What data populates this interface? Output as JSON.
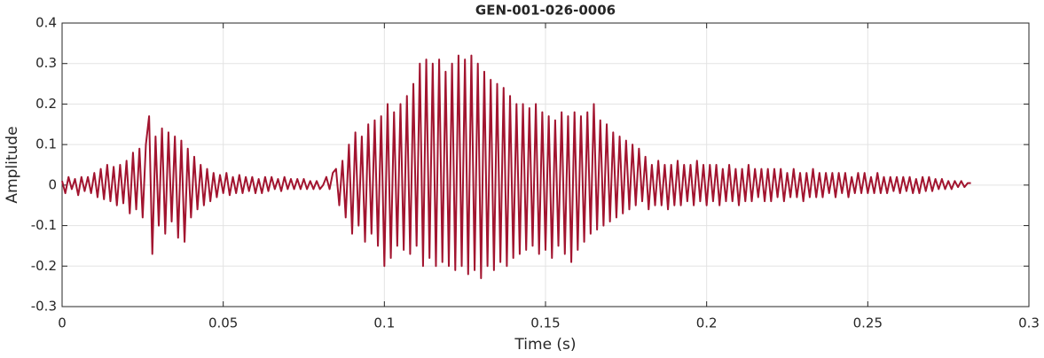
{
  "chart_data": {
    "type": "line",
    "title": "GEN-001-026-0006",
    "xlabel": "Time (s)",
    "ylabel": "Amplitude",
    "color": "#a2142f",
    "grid": true,
    "xlim": [
      0,
      0.3
    ],
    "xticks": [
      0,
      0.05,
      0.1,
      0.15,
      0.2,
      0.25,
      0.3
    ],
    "ylim": [
      -0.3,
      0.4
    ],
    "yticks": [
      -0.3,
      -0.2,
      -0.1,
      0,
      0.1,
      0.2,
      0.3,
      0.4
    ],
    "x": [
      0,
      0.001,
      0.002,
      0.003,
      0.004,
      0.005,
      0.006,
      0.007,
      0.008,
      0.009,
      0.01,
      0.011,
      0.012,
      0.013,
      0.014,
      0.015,
      0.016,
      0.017,
      0.018,
      0.019,
      0.02,
      0.021,
      0.022,
      0.023,
      0.024,
      0.025,
      0.026,
      0.027,
      0.028,
      0.029,
      0.03,
      0.031,
      0.032,
      0.033,
      0.034,
      0.035,
      0.036,
      0.037,
      0.038,
      0.039,
      0.04,
      0.041,
      0.042,
      0.043,
      0.044,
      0.045,
      0.046,
      0.047,
      0.048,
      0.049,
      0.05,
      0.051,
      0.052,
      0.053,
      0.054,
      0.055,
      0.056,
      0.057,
      0.058,
      0.059,
      0.06,
      0.061,
      0.062,
      0.063,
      0.064,
      0.065,
      0.066,
      0.067,
      0.068,
      0.069,
      0.07,
      0.071,
      0.072,
      0.073,
      0.074,
      0.075,
      0.076,
      0.077,
      0.078,
      0.079,
      0.08,
      0.081,
      0.082,
      0.083,
      0.084,
      0.085,
      0.086,
      0.087,
      0.088,
      0.089,
      0.09,
      0.091,
      0.092,
      0.093,
      0.094,
      0.095,
      0.096,
      0.097,
      0.098,
      0.099,
      0.1,
      0.101,
      0.102,
      0.103,
      0.104,
      0.105,
      0.106,
      0.107,
      0.108,
      0.109,
      0.11,
      0.111,
      0.112,
      0.113,
      0.114,
      0.115,
      0.116,
      0.117,
      0.118,
      0.119,
      0.12,
      0.121,
      0.122,
      0.123,
      0.124,
      0.125,
      0.126,
      0.127,
      0.128,
      0.129,
      0.13,
      0.131,
      0.132,
      0.133,
      0.134,
      0.135,
      0.136,
      0.137,
      0.138,
      0.139,
      0.14,
      0.141,
      0.142,
      0.143,
      0.144,
      0.145,
      0.146,
      0.147,
      0.148,
      0.149,
      0.15,
      0.151,
      0.152,
      0.153,
      0.154,
      0.155,
      0.156,
      0.157,
      0.158,
      0.159,
      0.16,
      0.161,
      0.162,
      0.163,
      0.164,
      0.165,
      0.166,
      0.167,
      0.168,
      0.169,
      0.17,
      0.171,
      0.172,
      0.173,
      0.174,
      0.175,
      0.176,
      0.177,
      0.178,
      0.179,
      0.18,
      0.181,
      0.182,
      0.183,
      0.184,
      0.185,
      0.186,
      0.187,
      0.188,
      0.189,
      0.19,
      0.191,
      0.192,
      0.193,
      0.194,
      0.195,
      0.196,
      0.197,
      0.198,
      0.199,
      0.2,
      0.201,
      0.202,
      0.203,
      0.204,
      0.205,
      0.206,
      0.207,
      0.208,
      0.209,
      0.21,
      0.211,
      0.212,
      0.213,
      0.214,
      0.215,
      0.216,
      0.217,
      0.218,
      0.219,
      0.22,
      0.221,
      0.222,
      0.223,
      0.224,
      0.225,
      0.226,
      0.227,
      0.228,
      0.229,
      0.23,
      0.231,
      0.232,
      0.233,
      0.234,
      0.235,
      0.236,
      0.237,
      0.238,
      0.239,
      0.24,
      0.241,
      0.242,
      0.243,
      0.244,
      0.245,
      0.246,
      0.247,
      0.248,
      0.249,
      0.25,
      0.251,
      0.252,
      0.253,
      0.254,
      0.255,
      0.256,
      0.257,
      0.258,
      0.259,
      0.26,
      0.261,
      0.262,
      0.263,
      0.264,
      0.265,
      0.266,
      0.267,
      0.268,
      0.269,
      0.27,
      0.271,
      0.272,
      0.273,
      0.274,
      0.275,
      0.276,
      0.277,
      0.278,
      0.279,
      0.28,
      0.281,
      0.282
    ],
    "values": [
      0.01,
      -0.02,
      0.02,
      -0.01,
      0.015,
      -0.025,
      0.02,
      -0.015,
      0.02,
      -0.02,
      0.03,
      -0.03,
      0.04,
      -0.035,
      0.05,
      -0.04,
      0.045,
      -0.05,
      0.05,
      -0.045,
      0.06,
      -0.07,
      0.08,
      -0.06,
      0.09,
      -0.08,
      0.1,
      0.17,
      -0.17,
      0.12,
      -0.1,
      0.14,
      -0.12,
      0.13,
      -0.09,
      0.12,
      -0.13,
      0.11,
      -0.14,
      0.09,
      -0.08,
      0.07,
      -0.06,
      0.05,
      -0.05,
      0.04,
      -0.04,
      0.03,
      -0.03,
      0.025,
      -0.02,
      0.03,
      -0.025,
      0.02,
      -0.02,
      0.025,
      -0.02,
      0.02,
      -0.015,
      0.02,
      -0.02,
      0.015,
      -0.02,
      0.02,
      -0.015,
      0.02,
      -0.01,
      0.015,
      -0.015,
      0.02,
      -0.01,
      0.015,
      -0.01,
      0.015,
      -0.01,
      0.015,
      -0.01,
      0.01,
      -0.01,
      0.01,
      -0.01,
      0.0,
      0.02,
      -0.01,
      0.03,
      0.04,
      -0.05,
      0.06,
      -0.08,
      0.1,
      -0.12,
      0.13,
      -0.1,
      0.12,
      -0.14,
      0.15,
      -0.12,
      0.16,
      -0.15,
      0.17,
      -0.2,
      0.2,
      -0.18,
      0.18,
      -0.15,
      0.2,
      -0.16,
      0.22,
      -0.17,
      0.25,
      -0.15,
      0.3,
      -0.2,
      0.31,
      -0.18,
      0.3,
      -0.2,
      0.31,
      -0.19,
      0.28,
      -0.2,
      0.3,
      -0.21,
      0.32,
      -0.2,
      0.31,
      -0.22,
      0.32,
      -0.21,
      0.3,
      -0.23,
      0.28,
      -0.2,
      0.26,
      -0.21,
      0.25,
      -0.19,
      0.24,
      -0.2,
      0.22,
      -0.18,
      0.2,
      -0.17,
      0.2,
      -0.16,
      0.19,
      -0.15,
      0.2,
      -0.17,
      0.18,
      -0.16,
      0.17,
      -0.18,
      0.16,
      -0.15,
      0.18,
      -0.17,
      0.17,
      -0.19,
      0.18,
      -0.16,
      0.17,
      -0.14,
      0.18,
      -0.12,
      0.2,
      -0.11,
      0.16,
      -0.1,
      0.15,
      -0.09,
      0.13,
      -0.08,
      0.12,
      -0.07,
      0.11,
      -0.06,
      0.1,
      -0.05,
      0.09,
      -0.04,
      0.07,
      -0.06,
      0.05,
      -0.05,
      0.06,
      -0.05,
      0.05,
      -0.06,
      0.05,
      -0.05,
      0.06,
      -0.05,
      0.05,
      -0.04,
      0.05,
      -0.05,
      0.06,
      -0.04,
      0.05,
      -0.05,
      0.05,
      -0.04,
      0.05,
      -0.05,
      0.04,
      -0.04,
      0.05,
      -0.04,
      0.04,
      -0.05,
      0.04,
      -0.04,
      0.05,
      -0.04,
      0.04,
      -0.03,
      0.04,
      -0.04,
      0.04,
      -0.04,
      0.04,
      -0.03,
      0.04,
      -0.04,
      0.03,
      -0.03,
      0.04,
      -0.03,
      0.03,
      -0.04,
      0.03,
      -0.03,
      0.04,
      -0.03,
      0.03,
      -0.03,
      0.03,
      -0.02,
      0.03,
      -0.03,
      0.03,
      -0.02,
      0.03,
      -0.03,
      0.02,
      -0.02,
      0.03,
      -0.02,
      0.03,
      -0.02,
      0.02,
      -0.02,
      0.03,
      -0.02,
      0.02,
      -0.02,
      0.02,
      -0.015,
      0.02,
      -0.02,
      0.02,
      -0.015,
      0.02,
      -0.02,
      0.015,
      -0.02,
      0.02,
      -0.015,
      0.02,
      -0.015,
      0.015,
      -0.01,
      0.015,
      -0.01,
      0.01,
      -0.01,
      0.01,
      -0.005,
      0.01,
      -0.005,
      0.005,
      0.005
    ]
  }
}
